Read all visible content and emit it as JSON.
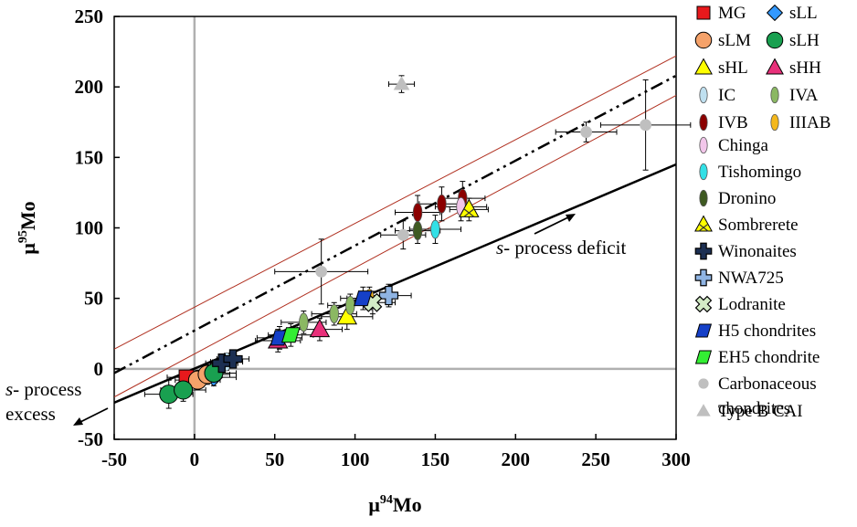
{
  "chart_data": {
    "type": "scatter",
    "xlabel": "μ94Mo",
    "ylabel": "μ95Mo",
    "xlim": [
      -50,
      300
    ],
    "ylim": [
      -50,
      250
    ],
    "x_ticks": [
      -50,
      0,
      50,
      100,
      150,
      200,
      250,
      300
    ],
    "y_ticks": [
      -50,
      0,
      50,
      100,
      150,
      200,
      250
    ],
    "grid": false,
    "legend_position": "right",
    "reference_lines": {
      "s_process_line": {
        "x": [
          -50,
          300
        ],
        "y": [
          -24,
          145
        ]
      },
      "mixing_line": {
        "x": [
          -50,
          300
        ],
        "y": [
          -3,
          208
        ]
      },
      "mixing_envelope_upper": {
        "x": [
          -50,
          300
        ],
        "y": [
          14,
          222
        ]
      },
      "mixing_envelope_lower": {
        "x": [
          -50,
          300
        ],
        "y": [
          -20,
          194
        ]
      }
    },
    "annotations": [
      {
        "text": "process deficit",
        "prefix": "s-",
        "x": 170,
        "y": 84
      },
      {
        "text": "process",
        "prefix": "s-",
        "x": -50,
        "y": -12
      },
      {
        "text": "excess",
        "x": -50,
        "y": -38
      }
    ],
    "series": [
      {
        "name": "MG",
        "marker": "square",
        "color": "#e8191c",
        "points": [
          {
            "x": -5,
            "y": -6,
            "xerr": 12,
            "yerr": 5
          }
        ]
      },
      {
        "name": "sLL",
        "marker": "diamond",
        "color": "#3399ff",
        "points": [
          {
            "x": 12,
            "y": -6,
            "xerr": 14,
            "yerr": 6
          }
        ]
      },
      {
        "name": "sLM",
        "marker": "circle",
        "color": "#f5a26a",
        "points": [
          {
            "x": 2,
            "y": -8,
            "xerr": 14,
            "yerr": 7
          },
          {
            "x": 8,
            "y": -4,
            "xerr": 14,
            "yerr": 7
          }
        ]
      },
      {
        "name": "sLH",
        "marker": "circle",
        "color": "#19a050",
        "points": [
          {
            "x": -16,
            "y": -18,
            "xerr": 15,
            "yerr": 10
          },
          {
            "x": -7,
            "y": -15,
            "xerr": 14,
            "yerr": 8
          },
          {
            "x": 12,
            "y": -3,
            "xerr": 14,
            "yerr": 7
          }
        ]
      },
      {
        "name": "sHL",
        "marker": "triangle",
        "color": "#ffff00",
        "points": [
          {
            "x": 95,
            "y": 37,
            "xerr": 16,
            "yerr": 9
          }
        ]
      },
      {
        "name": "sHH",
        "marker": "triangle",
        "color": "#e8307a",
        "points": [
          {
            "x": 52,
            "y": 20,
            "xerr": 14,
            "yerr": 8
          },
          {
            "x": 78,
            "y": 28,
            "xerr": 14,
            "yerr": 8
          }
        ]
      },
      {
        "name": "IC",
        "marker": "ellipse",
        "color": "#bfe0f0",
        "points": [
          {
            "x": 20,
            "y": 5,
            "xerr": 10,
            "yerr": 6
          }
        ]
      },
      {
        "name": "IVA",
        "marker": "ellipse",
        "color": "#8bb863",
        "points": [
          {
            "x": 68,
            "y": 33,
            "xerr": 14,
            "yerr": 8
          },
          {
            "x": 87,
            "y": 39,
            "xerr": 14,
            "yerr": 8
          },
          {
            "x": 97,
            "y": 45,
            "xerr": 14,
            "yerr": 8
          }
        ]
      },
      {
        "name": "IVB",
        "marker": "ellipse",
        "color": "#8b0000",
        "points": [
          {
            "x": 139,
            "y": 111,
            "xerr": 14,
            "yerr": 12
          },
          {
            "x": 154,
            "y": 117,
            "xerr": 14,
            "yerr": 12
          },
          {
            "x": 167,
            "y": 121,
            "xerr": 14,
            "yerr": 12
          }
        ]
      },
      {
        "name": "IIIAB",
        "marker": "ellipse",
        "color": "#f4b81c",
        "points": [
          {
            "x": 109,
            "y": 50,
            "xerr": 14,
            "yerr": 8
          }
        ]
      },
      {
        "name": "Chinga",
        "marker": "ellipse",
        "color": "#f2c6ea",
        "points": [
          {
            "x": 166,
            "y": 115,
            "xerr": 16,
            "yerr": 10
          }
        ]
      },
      {
        "name": "Tishomingo",
        "marker": "ellipse",
        "color": "#33e0e6",
        "points": [
          {
            "x": 150,
            "y": 99,
            "xerr": 16,
            "yerr": 10
          }
        ]
      },
      {
        "name": "Dronino",
        "marker": "ellipse",
        "color": "#3f5a22",
        "points": [
          {
            "x": 139,
            "y": 98,
            "xerr": 14,
            "yerr": 9
          }
        ]
      },
      {
        "name": "Sombrerete",
        "marker": "triangle-hatched",
        "color": "#ffff00",
        "points": [
          {
            "x": 171,
            "y": 113,
            "xerr": 12,
            "yerr": 8
          }
        ]
      },
      {
        "name": "Winonaites",
        "marker": "plus",
        "color": "#1c2f52",
        "points": [
          {
            "x": 17,
            "y": 4,
            "xerr": 10,
            "yerr": 6
          },
          {
            "x": 24,
            "y": 7,
            "xerr": 10,
            "yerr": 6
          }
        ]
      },
      {
        "name": "NWA725",
        "marker": "plus",
        "color": "#8fb4e3",
        "points": [
          {
            "x": 121,
            "y": 52,
            "xerr": 14,
            "yerr": 8
          }
        ]
      },
      {
        "name": "Lodranite",
        "marker": "plus-rotated",
        "color": "#d3ecc6",
        "points": [
          {
            "x": 111,
            "y": 47,
            "xerr": 14,
            "yerr": 8
          }
        ]
      },
      {
        "name": "H5 chondrites",
        "marker": "parallelogram",
        "color": "#1540c8",
        "points": [
          {
            "x": 53,
            "y": 22,
            "xerr": 14,
            "yerr": 8
          },
          {
            "x": 105,
            "y": 50,
            "xerr": 14,
            "yerr": 8
          }
        ]
      },
      {
        "name": "EH5 chondrite",
        "marker": "parallelogram",
        "color": "#33ee33",
        "points": [
          {
            "x": 60,
            "y": 24,
            "xerr": 14,
            "yerr": 8
          }
        ]
      },
      {
        "name": "Carbonaceous chondrites",
        "marker": "circle-small",
        "color": "#bfbfbf",
        "points": [
          {
            "x": 79,
            "y": 69,
            "xerr": 29,
            "yerr": 23
          },
          {
            "x": 130,
            "y": 95,
            "xerr": 14,
            "yerr": 10
          },
          {
            "x": 244,
            "y": 168,
            "xerr": 19,
            "yerr": 7
          },
          {
            "x": 281,
            "y": 173,
            "xerr": 28,
            "yerr": 32
          }
        ]
      },
      {
        "name": "Type B CAI",
        "marker": "triangle-small",
        "color": "#bfbfbf",
        "points": [
          {
            "x": 129,
            "y": 202,
            "xerr": 8,
            "yerr": 6
          }
        ]
      }
    ]
  }
}
